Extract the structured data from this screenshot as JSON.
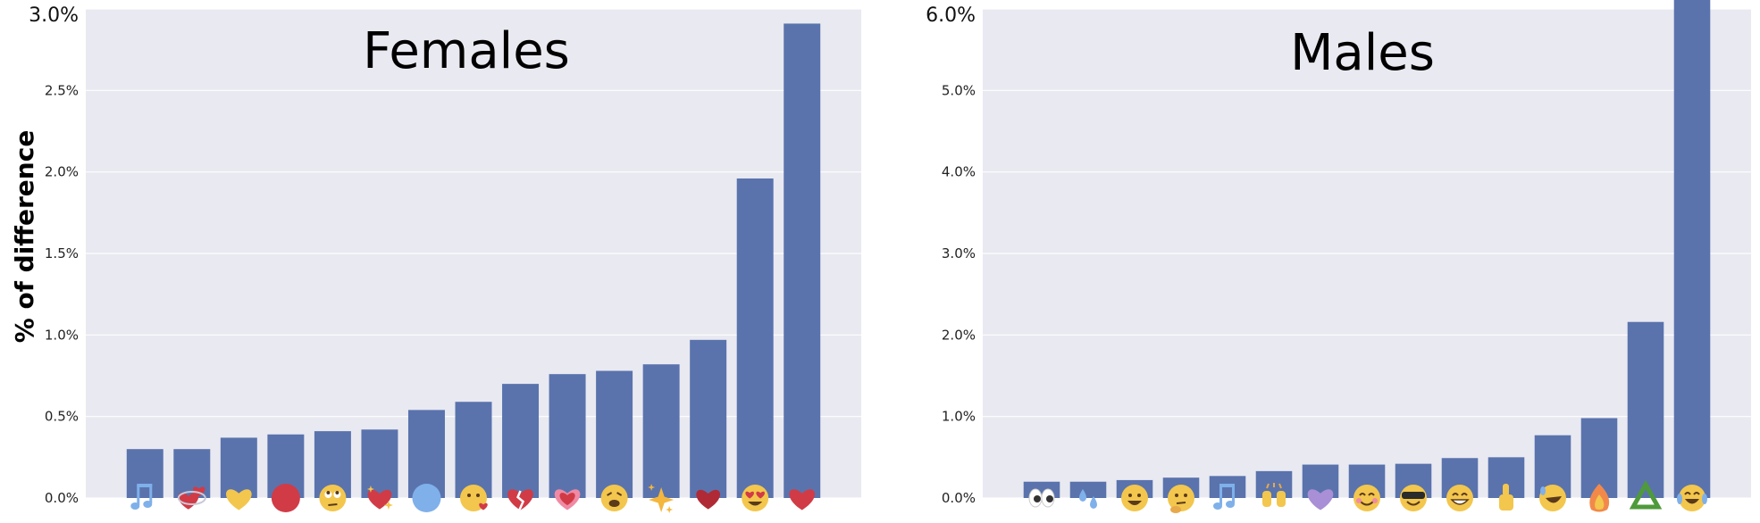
{
  "figure": {
    "ylabel": "% of difference"
  },
  "chart_data": [
    {
      "type": "bar",
      "title": "Females",
      "xlabel": "",
      "ylabel": "% of difference",
      "ylim": [
        0,
        3.0
      ],
      "grid": true,
      "yticks": [
        0.0,
        0.5,
        1.0,
        1.5,
        2.0,
        2.5,
        3.0
      ],
      "ytick_labels": [
        "0.0%",
        "0.5%",
        "1.0%",
        "1.5%",
        "2.0%",
        "2.5%",
        "3.0%"
      ],
      "categories": [
        "multiple-musical-notes",
        "revolving-hearts",
        "yellow-heart",
        "red-circle",
        "face-with-rolling-eyes",
        "sparkling-heart",
        "blue-circle",
        "face-blowing-a-kiss",
        "broken-heart",
        "growing-heart",
        "weary-face",
        "sparkles",
        "dark-red-heart",
        "smiling-face-with-heart-eyes",
        "red-heart"
      ],
      "values": [
        0.3,
        0.3,
        0.37,
        0.39,
        0.41,
        0.42,
        0.54,
        0.59,
        0.7,
        0.76,
        0.78,
        0.82,
        0.97,
        1.96,
        2.91
      ],
      "bar_color": "#5a73ad",
      "background_color": "#e9e9f1"
    },
    {
      "type": "bar",
      "title": "Males",
      "xlabel": "",
      "ylabel": "",
      "ylim": [
        0,
        6.0
      ],
      "grid": true,
      "yticks": [
        0.0,
        1.0,
        2.0,
        3.0,
        4.0,
        5.0,
        6.0
      ],
      "ytick_labels": [
        "0.0%",
        "1.0%",
        "2.0%",
        "3.0%",
        "4.0%",
        "5.0%",
        "6.0%"
      ],
      "categories": [
        "eyes",
        "sweat-droplets",
        "grinning-face",
        "thinking-face",
        "musical-note",
        "raising-hands",
        "purple-heart",
        "smiling-face-with-smiling-eyes",
        "smiling-face-with-sunglasses",
        "beaming-face",
        "thumbs-up",
        "rolling-on-the-floor-laughing",
        "fire",
        "recycling-symbol",
        "face-with-tears-of-joy"
      ],
      "values": [
        0.2,
        0.2,
        0.22,
        0.25,
        0.27,
        0.33,
        0.41,
        0.41,
        0.42,
        0.49,
        0.5,
        0.77,
        0.98,
        2.16,
        6.12
      ],
      "bar_color": "#5a73ad",
      "background_color": "#e9e9f1"
    }
  ]
}
